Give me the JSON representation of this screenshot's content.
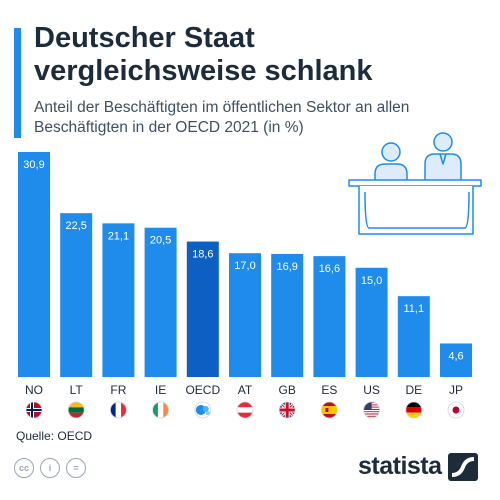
{
  "header": {
    "title": "Deutscher Staat vergleichsweise schlank",
    "subtitle": "Anteil der Beschäftigten im öffentlichen Sektor an allen Beschäftigten in der OECD 2021 (in %)"
  },
  "chart_data": {
    "type": "bar",
    "categories": [
      "NO",
      "LT",
      "FR",
      "IE",
      "OECD",
      "AT",
      "GB",
      "ES",
      "US",
      "DE",
      "JP"
    ],
    "values": [
      30.9,
      22.5,
      21.1,
      20.5,
      18.6,
      17.0,
      16.9,
      16.6,
      15.0,
      11.1,
      4.6
    ],
    "value_labels": [
      "30,9",
      "22,5",
      "21,1",
      "20,5",
      "18,6",
      "17,0",
      "16,9",
      "16,6",
      "15,0",
      "11,1",
      "4,6"
    ],
    "ylim": [
      0,
      30.9
    ],
    "grid": false,
    "colors": {
      "bar": "#1f8bea",
      "highlight": "#0d5fc4"
    },
    "highlight_category": "OECD",
    "flags": [
      "norway-flag-icon",
      "lithuania-flag-icon",
      "france-flag-icon",
      "ireland-flag-icon",
      "oecd-logo-icon",
      "austria-flag-icon",
      "uk-flag-icon",
      "spain-flag-icon",
      "usa-flag-icon",
      "germany-flag-icon",
      "japan-flag-icon"
    ]
  },
  "footer": {
    "source": "Quelle: OECD",
    "brand": "statista",
    "license_icons": [
      "cc-icon",
      "person-icon",
      "equals-icon"
    ]
  },
  "illustration": {
    "icon": "public-office-counter-icon"
  }
}
